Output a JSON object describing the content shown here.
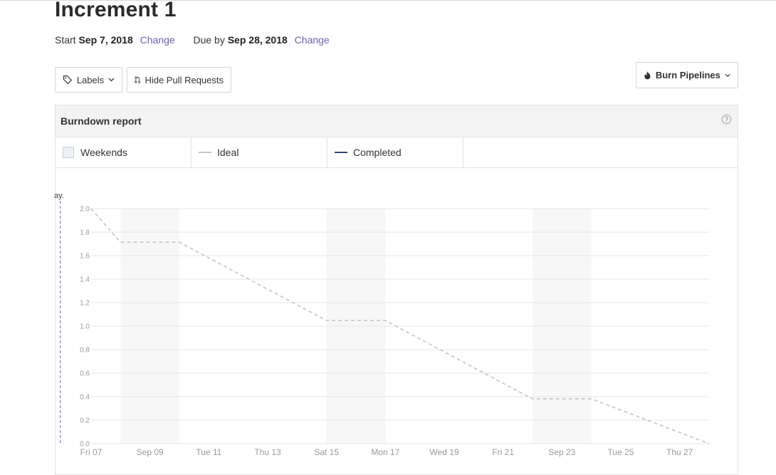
{
  "header": {
    "title": "Increment 1",
    "start_label": "Start",
    "start_date": "Sep 7, 2018",
    "start_change": "Change",
    "due_label": "Due by",
    "due_date": "Sep 28, 2018",
    "due_change": "Change"
  },
  "toolbar": {
    "labels_label": "Labels",
    "hide_pr_label": "Hide Pull Requests",
    "burn_label": "Burn Pipelines"
  },
  "report": {
    "title": "Burndown report",
    "legend": {
      "weekends": "Weekends",
      "ideal": "Ideal",
      "completed": "Completed"
    },
    "cutoff_label": "ay."
  },
  "colors": {
    "ideal": "#c4c4c4",
    "completed": "#2f4a6e",
    "weekend_fill": "#f7f7f7",
    "today_marker": "#8a7ee6",
    "link": "#6b5fae"
  },
  "chart_data": {
    "type": "line",
    "y_ticks": [
      "0.0",
      "0.2",
      "0.4",
      "0.6",
      "0.8",
      "1.0",
      "1.2",
      "1.4",
      "1.6",
      "1.8",
      "2.0"
    ],
    "ylim": [
      0,
      2.0
    ],
    "x_tick_labels": [
      "Fri 07",
      "Sep 09",
      "Tue 11",
      "Thu 13",
      "Sat 15",
      "Mon 17",
      "Wed 19",
      "Fri 21",
      "Sep 23",
      "Tue 25",
      "Thu 27"
    ],
    "x_tick_days": [
      0,
      2,
      4,
      6,
      8,
      10,
      12,
      14,
      16,
      18,
      20
    ],
    "xlim_days": [
      0,
      21
    ],
    "weekends_days": [
      [
        1,
        3
      ],
      [
        8,
        10
      ],
      [
        15,
        17
      ]
    ],
    "today_day": -1,
    "grid": true,
    "series": [
      {
        "name": "Ideal",
        "style": "dashed",
        "days": [
          0,
          1,
          3,
          8,
          10,
          15,
          17,
          21
        ],
        "values": [
          2.0,
          1.714,
          1.714,
          1.048,
          1.048,
          0.381,
          0.381,
          0.0
        ]
      }
    ]
  }
}
